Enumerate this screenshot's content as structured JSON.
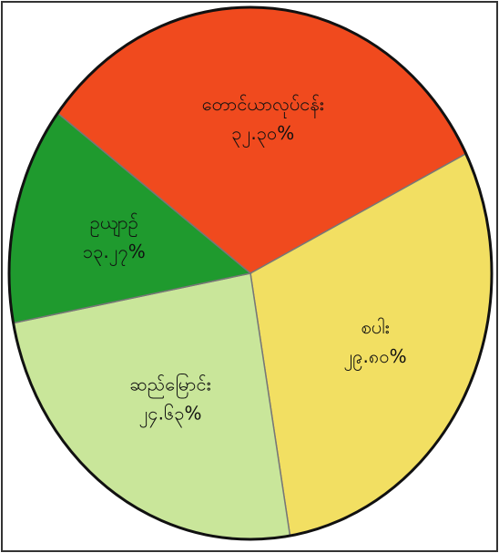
{
  "chart_data": {
    "type": "pie",
    "categories": [
      "တောင်ယာလုပ်ငန်း",
      "စပါး",
      "ဆည်မြောင်း",
      "ဥယျာဉ်"
    ],
    "values": [
      32.3,
      29.8,
      24.63,
      13.27
    ],
    "value_labels": [
      "၃၂.၃၀%",
      "၂၉.၈၀%",
      "၂၄.၆၃%",
      "၁၃.၂၇%"
    ],
    "colors": [
      "#f04a1e",
      "#f2df62",
      "#c9e69a",
      "#1f9a2e"
    ]
  }
}
